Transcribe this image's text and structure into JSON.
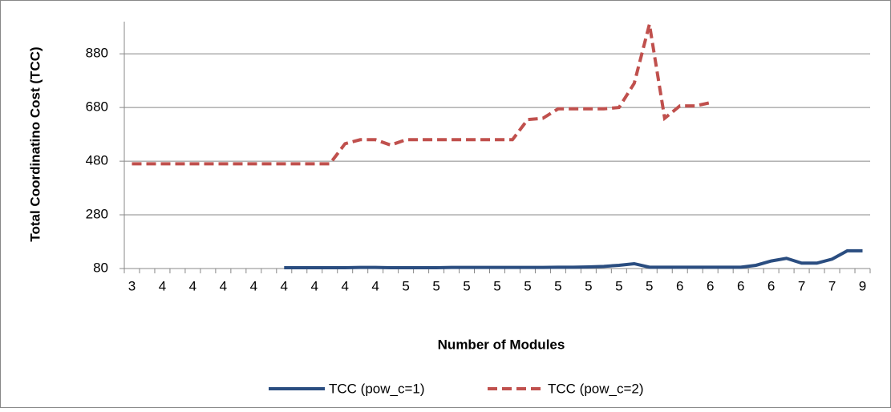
{
  "chart_data": {
    "type": "line",
    "x_label": "Number of Modules",
    "y_label": "Total Coordinatino Cost (TCC)",
    "categories": [
      "3",
      null,
      "4",
      null,
      "4",
      null,
      "4",
      null,
      "4",
      null,
      "4",
      null,
      "4",
      null,
      "4",
      null,
      "4",
      null,
      "5",
      null,
      "5",
      null,
      "5",
      null,
      "5",
      null,
      "5",
      null,
      "5",
      null,
      "5",
      null,
      "5",
      null,
      "5",
      null,
      "6",
      null,
      "6",
      null,
      "6",
      null,
      "6",
      null,
      "7",
      null,
      "7",
      null,
      "9"
    ],
    "series": [
      {
        "name": "TCC (pow_c=1)",
        "color": "#2a4d80",
        "dash": false,
        "values": [
          null,
          null,
          null,
          null,
          null,
          null,
          null,
          null,
          null,
          null,
          83,
          83,
          83,
          83,
          83,
          84,
          84,
          83,
          83,
          83,
          83,
          84,
          84,
          84,
          84,
          84,
          84,
          84,
          85,
          85,
          86,
          88,
          92,
          98,
          85,
          85,
          85,
          85,
          85,
          85,
          85,
          92,
          108,
          118,
          100,
          100,
          115,
          146,
          146
        ]
      },
      {
        "name": "TCC (pow_c=2)",
        "color": "#c0504d",
        "dash": true,
        "values": [
          470,
          470,
          470,
          470,
          470,
          470,
          470,
          470,
          470,
          470,
          470,
          470,
          470,
          470,
          545,
          560,
          560,
          540,
          560,
          560,
          560,
          560,
          560,
          560,
          560,
          560,
          635,
          640,
          675,
          675,
          675,
          675,
          680,
          770,
          990,
          640,
          686,
          686,
          698,
          null,
          null,
          null,
          null,
          null,
          null,
          null,
          null,
          null,
          null
        ]
      }
    ],
    "ylim": [
      80,
      1000
    ],
    "yticks": [
      80,
      280,
      480,
      680,
      880
    ],
    "grid": true
  }
}
